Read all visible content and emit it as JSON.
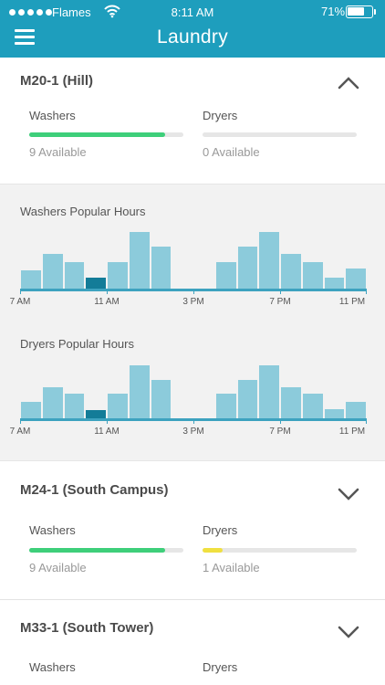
{
  "status_bar": {
    "carrier": "Flames",
    "time": "8:11 AM",
    "battery": "71%",
    "battery_level": 0.71,
    "icons": [
      "signal-dots-icon",
      "wifi-icon",
      "battery-icon"
    ]
  },
  "header": {
    "title": "Laundry",
    "menu_icon": "hamburger-icon"
  },
  "colors": {
    "header": "#1e9ebd",
    "washer_bar": "#3ecf7a",
    "dryer_bar_low": "#f0e040",
    "hist_bar": "#8ccbdb",
    "hist_current": "#137c98"
  },
  "locations": [
    {
      "name": "M20-1 (Hill)",
      "chevron": "chevron-up-icon",
      "washers": {
        "label": "Washers",
        "availability": "9 Available",
        "fill": 0.88
      },
      "dryers": {
        "label": "Dryers",
        "availability": "0 Available",
        "fill": 0.0
      }
    },
    {
      "name": "M24-1 (South Campus)",
      "chevron": "chevron-down-icon",
      "washers": {
        "label": "Washers",
        "availability": "9 Available",
        "fill": 0.88
      },
      "dryers": {
        "label": "Dryers",
        "availability": "1 Available",
        "fill": 0.13
      }
    },
    {
      "name": "M33-1 (South Tower)",
      "chevron": "chevron-down-icon",
      "washers": {
        "label": "Washers"
      },
      "dryers": {
        "label": "Dryers"
      }
    }
  ],
  "popular_hours": {
    "tick_labels": [
      "7 AM",
      "11 AM",
      "3 PM",
      "7 PM",
      "11 PM"
    ],
    "current_hour_index": 3,
    "charts": [
      {
        "title": "Washers Popular Hours",
        "values": [
          0.33,
          0.62,
          0.47,
          0.2,
          0.47,
          1.0,
          0.75,
          0.0,
          0.0,
          0.47,
          0.75,
          1.0,
          0.62,
          0.47,
          0.2,
          0.35
        ]
      },
      {
        "title": "Dryers Popular Hours",
        "values": [
          0.31,
          0.57,
          0.45,
          0.15,
          0.45,
          0.98,
          0.72,
          0.0,
          0.0,
          0.45,
          0.72,
          0.98,
          0.57,
          0.45,
          0.17,
          0.31
        ]
      }
    ]
  }
}
